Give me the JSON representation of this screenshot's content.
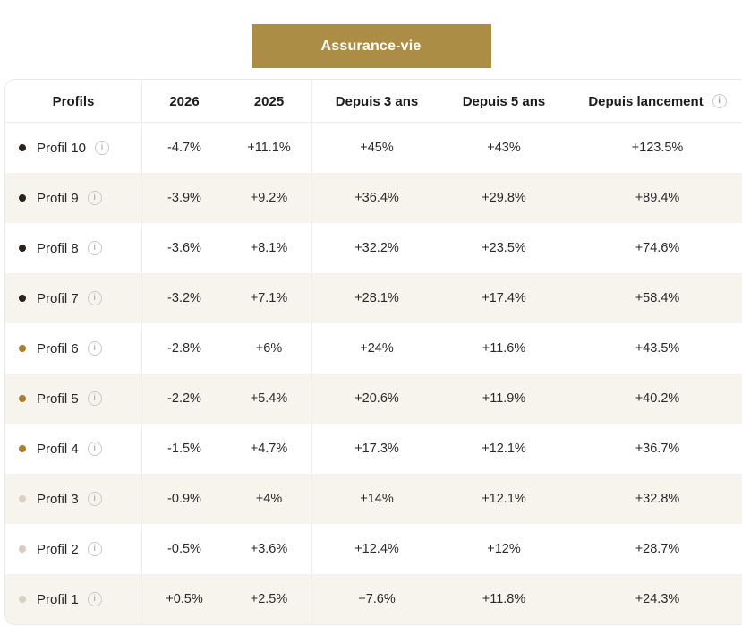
{
  "button": {
    "label": "Assurance-vie"
  },
  "icons": {
    "info_glyph": "i"
  },
  "colors": {
    "accent_gold": "#AB8D45",
    "alt_row_bg": "#F6F4ED",
    "divider": "#ededed",
    "header_text": "#1c1c1c",
    "value_text": "#2a2a2a"
  },
  "table": {
    "columns": [
      "Profils",
      "2026",
      "2025",
      "Depuis 3 ans",
      "Depuis 5 ans",
      "Depuis lancement"
    ],
    "rows": [
      {
        "profile": "Profil 10",
        "dot_color": "#2E231A",
        "values": [
          "-4.7%",
          "+11.1%",
          "+45%",
          "+43%",
          "+123.5%"
        ]
      },
      {
        "profile": "Profil 9",
        "dot_color": "#2E231A",
        "values": [
          "-3.9%",
          "+9.2%",
          "+36.4%",
          "+29.8%",
          "+89.4%"
        ]
      },
      {
        "profile": "Profil 8",
        "dot_color": "#2E231A",
        "values": [
          "-3.6%",
          "+8.1%",
          "+32.2%",
          "+23.5%",
          "+74.6%"
        ]
      },
      {
        "profile": "Profil 7",
        "dot_color": "#2E231A",
        "values": [
          "-3.2%",
          "+7.1%",
          "+28.1%",
          "+17.4%",
          "+58.4%"
        ]
      },
      {
        "profile": "Profil 6",
        "dot_color": "#A87E2F",
        "values": [
          "-2.8%",
          "+6%",
          "+24%",
          "+11.6%",
          "+43.5%"
        ]
      },
      {
        "profile": "Profil 5",
        "dot_color": "#A87E2F",
        "values": [
          "-2.2%",
          "+5.4%",
          "+20.6%",
          "+11.9%",
          "+40.2%"
        ]
      },
      {
        "profile": "Profil 4",
        "dot_color": "#A87E2F",
        "values": [
          "-1.5%",
          "+4.7%",
          "+17.3%",
          "+12.1%",
          "+36.7%"
        ]
      },
      {
        "profile": "Profil 3",
        "dot_color": "#D8D1C4",
        "values": [
          "-0.9%",
          "+4%",
          "+14%",
          "+12.1%",
          "+32.8%"
        ]
      },
      {
        "profile": "Profil 2",
        "dot_color": "#D9CBC1",
        "values": [
          "-0.5%",
          "+3.6%",
          "+12.4%",
          "+12%",
          "+28.7%"
        ]
      },
      {
        "profile": "Profil 1",
        "dot_color": "#D6D0C3",
        "values": [
          "+0.5%",
          "+2.5%",
          "+7.6%",
          "+11.8%",
          "+24.3%"
        ]
      }
    ]
  }
}
